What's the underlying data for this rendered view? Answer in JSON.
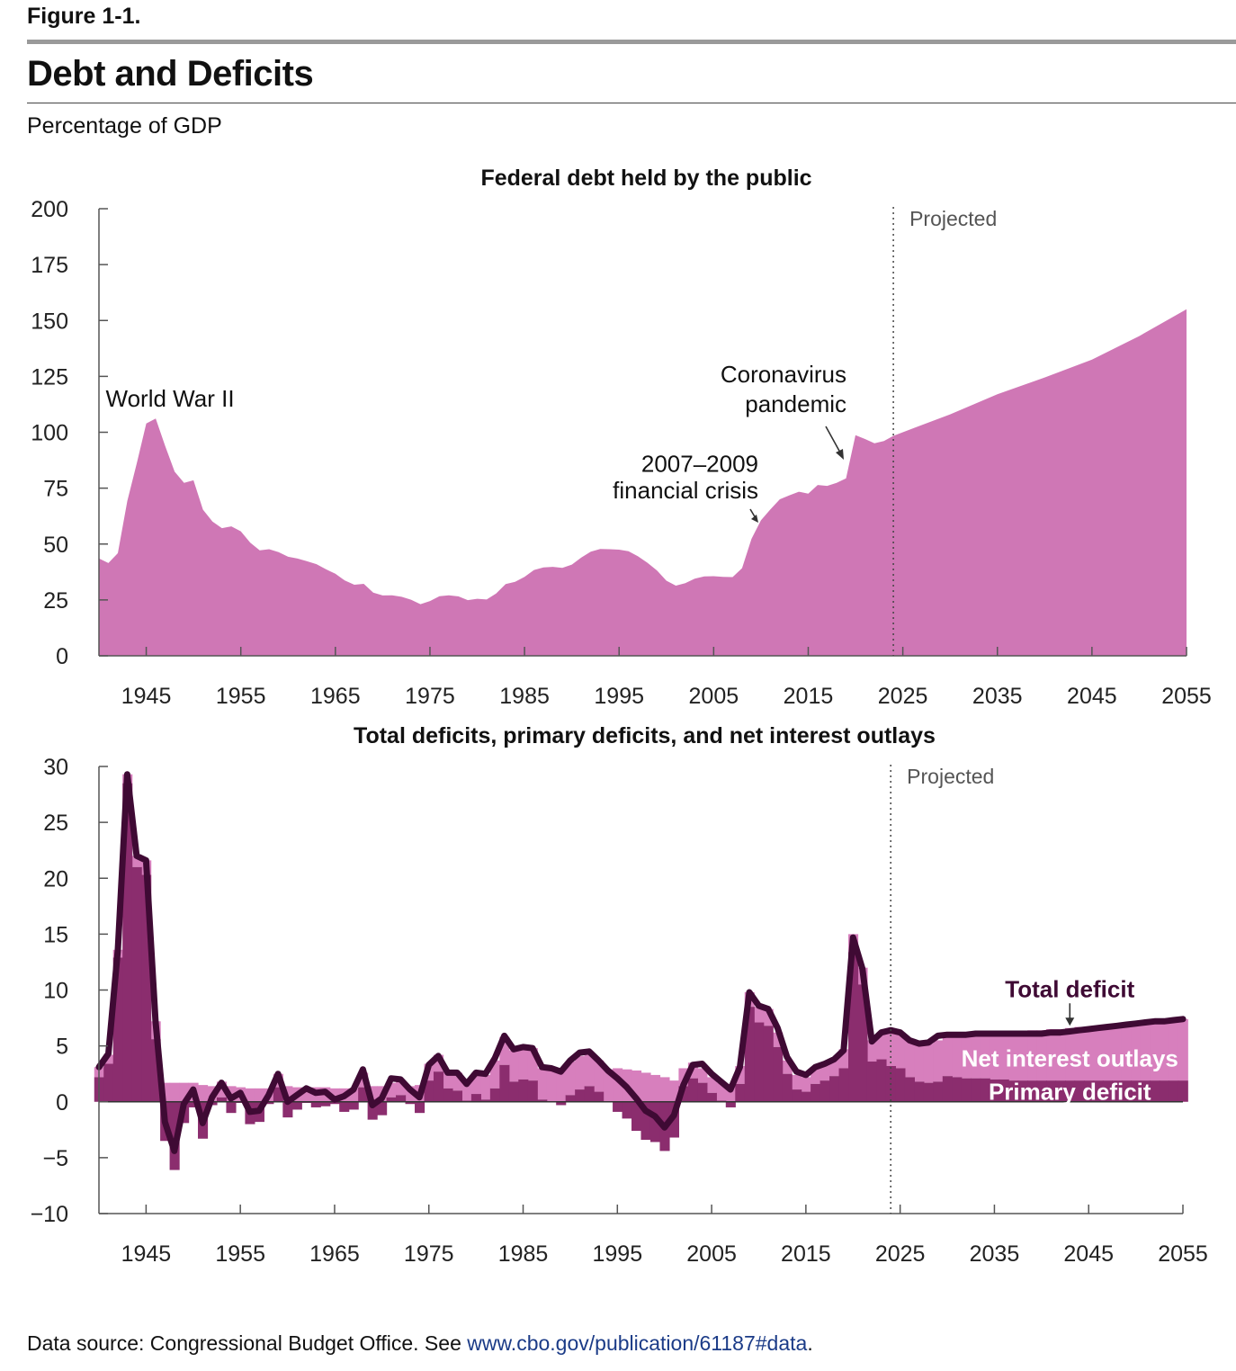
{
  "header": {
    "figure_label": "Figure 1-1.",
    "title": "Debt and Deficits",
    "units": "Percentage of GDP"
  },
  "source": {
    "prefix": "Data source: Congressional Budget Office. See ",
    "link": "www.cbo.gov/publication/61187#data",
    "suffix": "."
  },
  "colors": {
    "debt_fill": "#cf77b5",
    "net_interest_fill": "#d77fbd",
    "primary_deficit_fill": "#8b2d6e",
    "total_deficit_line": "#3f0a34",
    "text": "#111111"
  },
  "chart_data": [
    {
      "type": "area",
      "title": "Federal debt held by the public",
      "projected_label": "Projected",
      "projected_start": 2024,
      "xlim": [
        1940,
        2055
      ],
      "ylim": [
        0,
        200
      ],
      "x_ticks": [
        1945,
        1955,
        1965,
        1975,
        1985,
        1995,
        2005,
        2015,
        2025,
        2035,
        2045,
        2055
      ],
      "y_ticks": [
        0,
        25,
        50,
        75,
        100,
        125,
        150,
        175,
        200
      ],
      "annotations": [
        {
          "text": "World War II",
          "x": 1943,
          "y": 115
        },
        {
          "text": "2007–2009",
          "x": 2004,
          "y": 86
        },
        {
          "text": "financial crisis",
          "x": 2004,
          "y": 74
        },
        {
          "text": "Coronavirus",
          "x": 2012,
          "y": 124
        },
        {
          "text": "pandemic",
          "x": 2012,
          "y": 111
        }
      ],
      "x": [
        1940,
        1941,
        1942,
        1943,
        1944,
        1945,
        1946,
        1947,
        1948,
        1949,
        1950,
        1951,
        1952,
        1953,
        1954,
        1955,
        1956,
        1957,
        1958,
        1959,
        1960,
        1961,
        1962,
        1963,
        1964,
        1965,
        1966,
        1967,
        1968,
        1969,
        1970,
        1971,
        1972,
        1973,
        1974,
        1975,
        1976,
        1977,
        1978,
        1979,
        1980,
        1981,
        1982,
        1983,
        1984,
        1985,
        1986,
        1987,
        1988,
        1989,
        1990,
        1991,
        1992,
        1993,
        1994,
        1995,
        1996,
        1997,
        1998,
        1999,
        2000,
        2001,
        2002,
        2003,
        2004,
        2005,
        2006,
        2007,
        2008,
        2009,
        2010,
        2011,
        2012,
        2013,
        2014,
        2015,
        2016,
        2017,
        2018,
        2019,
        2020,
        2021,
        2022,
        2023,
        2024,
        2025,
        2030,
        2035,
        2040,
        2045,
        2050,
        2055
      ],
      "values": [
        43.6,
        41.5,
        45.9,
        69.2,
        86.2,
        103.9,
        106.1,
        93.9,
        82.4,
        77.4,
        78.5,
        65.4,
        60.1,
        57.1,
        57.9,
        55.7,
        50.6,
        47.2,
        47.7,
        46.4,
        44.3,
        43.5,
        42.3,
        41.0,
        38.7,
        36.7,
        33.7,
        31.8,
        32.2,
        28.3,
        27.0,
        27.1,
        26.4,
        25.1,
        23.1,
        24.5,
        26.7,
        27.1,
        26.6,
        24.9,
        25.5,
        25.2,
        27.9,
        32.1,
        33.1,
        35.3,
        38.4,
        39.5,
        39.8,
        39.3,
        40.8,
        44.0,
        46.6,
        47.8,
        47.7,
        47.5,
        46.8,
        44.5,
        41.6,
        38.2,
        33.6,
        31.4,
        32.5,
        34.5,
        35.5,
        35.6,
        35.3,
        35.2,
        39.2,
        52.3,
        60.6,
        65.5,
        70.0,
        71.8,
        73.4,
        72.5,
        76.4,
        76.0,
        77.4,
        79.4,
        98.7,
        97.0,
        95.1,
        96.1,
        98.4,
        100.0,
        108.0,
        117.0,
        124.5,
        132.5,
        143.0,
        155.0
      ]
    },
    {
      "type": "bar",
      "title": "Total deficits, primary deficits, and net interest outlays",
      "projected_label": "Projected",
      "projected_start": 2024,
      "xlim": [
        1940,
        2055
      ],
      "ylim": [
        -10,
        30
      ],
      "x_ticks": [
        1945,
        1955,
        1965,
        1975,
        1985,
        1995,
        2005,
        2015,
        2025,
        2035,
        2045,
        2055
      ],
      "y_ticks": [
        -10,
        -5,
        0,
        5,
        10,
        15,
        20,
        25,
        30
      ],
      "x": [
        1940,
        1941,
        1942,
        1943,
        1944,
        1945,
        1946,
        1947,
        1948,
        1949,
        1950,
        1951,
        1952,
        1953,
        1954,
        1955,
        1956,
        1957,
        1958,
        1959,
        1960,
        1961,
        1962,
        1963,
        1964,
        1965,
        1966,
        1967,
        1968,
        1969,
        1970,
        1971,
        1972,
        1973,
        1974,
        1975,
        1976,
        1977,
        1978,
        1979,
        1980,
        1981,
        1982,
        1983,
        1984,
        1985,
        1986,
        1987,
        1988,
        1989,
        1990,
        1991,
        1992,
        1993,
        1994,
        1995,
        1996,
        1997,
        1998,
        1999,
        2000,
        2001,
        2002,
        2003,
        2004,
        2005,
        2006,
        2007,
        2008,
        2009,
        2010,
        2011,
        2012,
        2013,
        2014,
        2015,
        2016,
        2017,
        2018,
        2019,
        2020,
        2021,
        2022,
        2023,
        2024,
        2025,
        2026,
        2027,
        2028,
        2029,
        2030,
        2031,
        2032,
        2033,
        2034,
        2035,
        2036,
        2037,
        2038,
        2039,
        2040,
        2041,
        2042,
        2043,
        2044,
        2045,
        2046,
        2047,
        2048,
        2049,
        2050,
        2051,
        2052,
        2053,
        2054,
        2055
      ],
      "series": [
        {
          "name": "Primary deficit",
          "values": [
            2.2,
            3.4,
            12.9,
            28.5,
            21.0,
            20.3,
            5.6,
            -3.5,
            -6.1,
            -1.9,
            -0.5,
            -3.3,
            -0.3,
            0.4,
            -1.0,
            -0.1,
            -2.0,
            -1.8,
            -0.2,
            1.3,
            -1.4,
            -0.7,
            -0.1,
            -0.5,
            -0.4,
            -0.2,
            -0.9,
            -0.7,
            1.3,
            -1.6,
            -1.2,
            0.4,
            0.6,
            -0.2,
            -1.0,
            1.9,
            2.7,
            1.2,
            1.0,
            0.1,
            0.7,
            0.2,
            1.2,
            3.3,
            1.8,
            2.0,
            1.9,
            0.2,
            0.0,
            -0.3,
            0.6,
            1.1,
            1.4,
            0.9,
            0.0,
            -0.9,
            -1.5,
            -2.6,
            -3.4,
            -3.6,
            -4.4,
            -3.2,
            1.4,
            2.1,
            1.7,
            0.8,
            0.1,
            -0.5,
            1.6,
            8.5,
            7.1,
            6.8,
            4.9,
            2.5,
            1.1,
            0.9,
            1.6,
            1.9,
            2.3,
            3.0,
            13.4,
            10.5,
            3.6,
            3.8,
            3.2,
            3.0,
            2.2,
            1.8,
            1.7,
            1.8,
            2.3,
            2.2,
            2.1,
            2.1,
            2.1,
            2.0,
            2.0,
            1.9,
            1.9,
            1.9,
            1.9,
            1.9,
            1.9,
            1.9,
            1.9,
            1.9,
            1.9,
            1.9,
            1.9,
            1.9,
            1.9,
            1.9,
            1.9,
            1.9,
            1.9,
            1.9
          ]
        },
        {
          "name": "Net interest outlays",
          "values": [
            0.9,
            0.8,
            0.7,
            0.8,
            1.0,
            1.3,
            1.6,
            1.7,
            1.7,
            1.7,
            1.7,
            1.5,
            1.4,
            1.4,
            1.4,
            1.3,
            1.2,
            1.2,
            1.2,
            1.2,
            1.4,
            1.3,
            1.2,
            1.3,
            1.3,
            1.2,
            1.2,
            1.2,
            1.3,
            1.4,
            1.4,
            1.3,
            1.3,
            1.4,
            1.5,
            1.5,
            1.5,
            1.5,
            1.6,
            1.7,
            1.9,
            2.2,
            2.5,
            2.5,
            2.8,
            3.0,
            2.9,
            2.8,
            2.8,
            2.9,
            3.0,
            3.0,
            2.9,
            2.8,
            2.9,
            3.0,
            2.9,
            2.8,
            2.6,
            2.4,
            2.2,
            1.9,
            1.6,
            1.4,
            1.3,
            1.4,
            1.6,
            1.6,
            1.6,
            1.3,
            1.4,
            1.5,
            1.3,
            1.2,
            1.3,
            1.3,
            1.4,
            1.4,
            1.6,
            1.7,
            1.6,
            1.5,
            1.9,
            2.4,
            3.1,
            3.2,
            3.3,
            3.4,
            3.5,
            3.7,
            3.8,
            3.9,
            4.0,
            4.1,
            4.2,
            4.3,
            4.3,
            4.4,
            4.4,
            4.5,
            4.5,
            4.6,
            4.6,
            4.7,
            4.8,
            4.8,
            4.9,
            5.0,
            5.1,
            5.1,
            5.2,
            5.3,
            5.3,
            5.4,
            5.4,
            5.5
          ]
        },
        {
          "name": "Total deficit",
          "values": [
            3.1,
            4.3,
            13.6,
            29.3,
            22.0,
            21.6,
            7.2,
            -1.8,
            -4.4,
            -0.2,
            1.1,
            -1.9,
            0.4,
            1.7,
            0.3,
            0.8,
            -0.9,
            -0.8,
            0.6,
            2.5,
            0.0,
            0.6,
            1.2,
            0.8,
            0.9,
            0.2,
            0.5,
            1.1,
            2.9,
            -0.3,
            0.3,
            2.1,
            2.0,
            1.1,
            0.4,
            3.3,
            4.1,
            2.6,
            2.6,
            1.6,
            2.6,
            2.5,
            3.9,
            5.9,
            4.7,
            4.9,
            4.8,
            3.1,
            3.0,
            2.7,
            3.7,
            4.4,
            4.5,
            3.7,
            2.8,
            2.1,
            1.3,
            0.3,
            -0.8,
            -1.3,
            -2.3,
            -1.2,
            1.5,
            3.3,
            3.4,
            2.5,
            1.8,
            1.1,
            3.1,
            9.8,
            8.6,
            8.3,
            6.6,
            4.0,
            2.7,
            2.4,
            3.1,
            3.4,
            3.8,
            4.6,
            14.7,
            11.9,
            5.4,
            6.2,
            6.4,
            6.2,
            5.5,
            5.2,
            5.3,
            5.9,
            6.0,
            6.0,
            6.0,
            6.1,
            6.1,
            6.1,
            6.1,
            6.1,
            6.1,
            6.1,
            6.1,
            6.2,
            6.2,
            6.3,
            6.4,
            6.5,
            6.6,
            6.7,
            6.8,
            6.9,
            7.0,
            7.1,
            7.2,
            7.2,
            7.3,
            7.4
          ]
        }
      ],
      "annotations": [
        {
          "text": "Total deficit",
          "x": 2043,
          "y": 10.1
        },
        {
          "text": "Net interest outlays",
          "x": 2043,
          "y": 3.9
        },
        {
          "text": "Primary deficit",
          "x": 2043,
          "y": 0.9
        }
      ]
    }
  ]
}
